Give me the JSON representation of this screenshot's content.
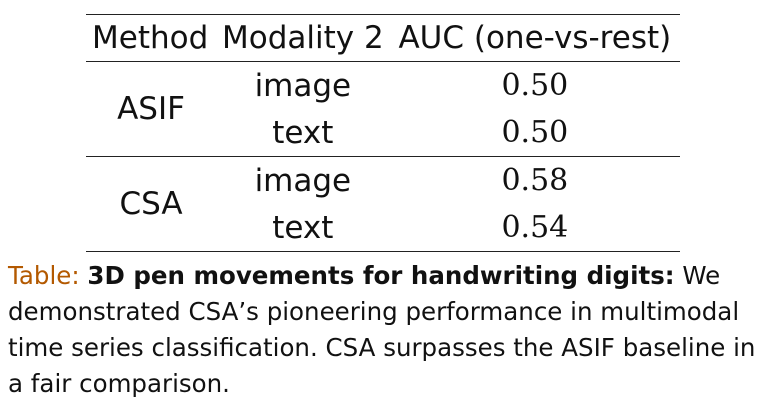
{
  "table": {
    "headers": [
      "Method",
      "Modality 2",
      "AUC (one-vs-rest)"
    ],
    "groups": [
      {
        "method": "ASIF",
        "rows": [
          {
            "modality": "image",
            "auc": "0.50"
          },
          {
            "modality": "text",
            "auc": "0.50"
          }
        ]
      },
      {
        "method": "CSA",
        "rows": [
          {
            "modality": "image",
            "auc": "0.58"
          },
          {
            "modality": "text",
            "auc": "0.54"
          }
        ]
      }
    ]
  },
  "caption": {
    "label": "Table:",
    "title": "3D pen movements for handwriting digits:",
    "body": "We demonstrated CSA’s pioneering performance in multimodal time series classification. CSA surpasses the ASIF baseline in a fair comparison."
  },
  "colors": {
    "caption_label": "#b35900",
    "text": "#111111",
    "rules": "#222222"
  }
}
